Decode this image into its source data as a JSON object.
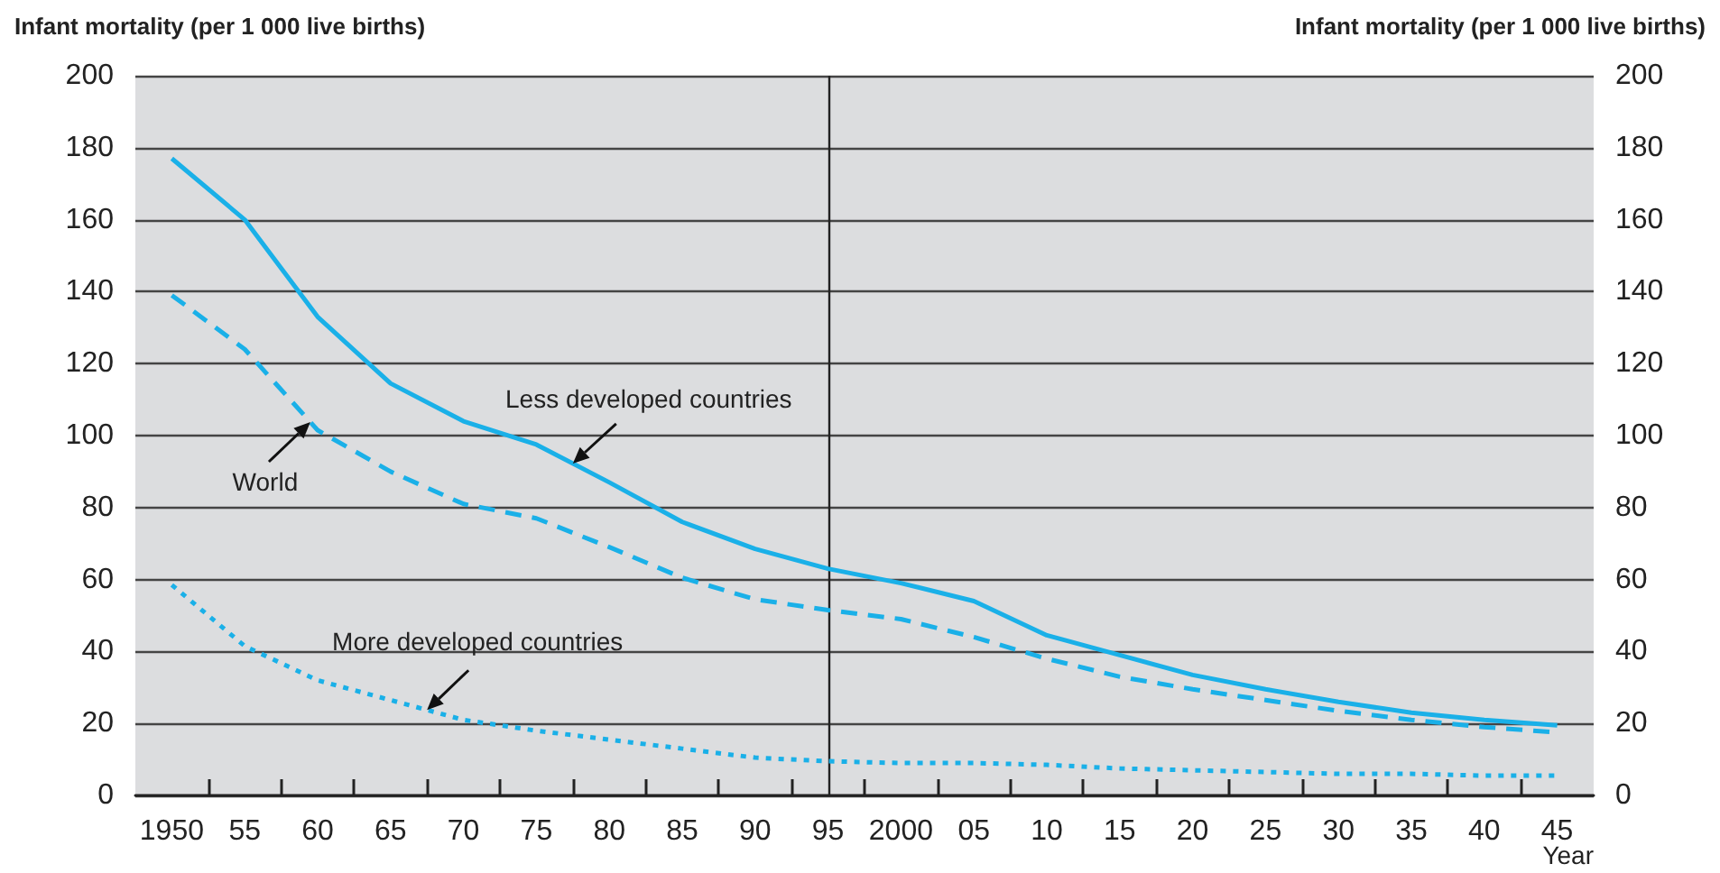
{
  "chart_data": {
    "type": "line",
    "ylabel": "Infant mortality (per 1 000 live births)",
    "y2label": "Infant mortality (per 1 000 live births)",
    "xlabel": "Year",
    "x": [
      1950,
      1955,
      1960,
      1965,
      1970,
      1975,
      1980,
      1985,
      1990,
      1995,
      2000,
      2005,
      2010,
      2015,
      2020,
      2025,
      2030,
      2035,
      2040,
      2045
    ],
    "series": [
      {
        "name": "Less developed countries",
        "color": "#1ab0e8",
        "line_style": "solid",
        "values": [
          177,
          160,
          133,
          114.5,
          104,
          97.5,
          87,
          76,
          68.5,
          63,
          59,
          54,
          44.5,
          39,
          33.5,
          29.5,
          26,
          23,
          21,
          19.5
        ]
      },
      {
        "name": "World",
        "color": "#1ab0e8",
        "line_style": "dashed",
        "values": [
          139,
          124,
          101.5,
          90,
          81,
          77,
          69,
          60.5,
          54.5,
          51.5,
          49,
          44,
          38,
          33,
          29.5,
          26.5,
          23.5,
          21,
          19,
          17.5
        ]
      },
      {
        "name": "More developed countries",
        "color": "#1ab0e8",
        "line_style": "dotted",
        "values": [
          58.5,
          41.5,
          32,
          26.5,
          21,
          18,
          15.5,
          13,
          10.5,
          9.5,
          9,
          9,
          8.5,
          7.5,
          7,
          6.5,
          6,
          6,
          5.5,
          5.5
        ]
      }
    ],
    "xlim": [
      1947.5,
      2047.5
    ],
    "xticks": [
      {
        "value": 1950,
        "label": "1950"
      },
      {
        "value": 1952.5,
        "label": null
      },
      {
        "value": 1955,
        "label": "55"
      },
      {
        "value": 1957.5,
        "label": null
      },
      {
        "value": 1960,
        "label": "60"
      },
      {
        "value": 1962.5,
        "label": null
      },
      {
        "value": 1965,
        "label": "65"
      },
      {
        "value": 1967.5,
        "label": null
      },
      {
        "value": 1970,
        "label": "70"
      },
      {
        "value": 1972.5,
        "label": null
      },
      {
        "value": 1975,
        "label": "75"
      },
      {
        "value": 1977.5,
        "label": null
      },
      {
        "value": 1980,
        "label": "80"
      },
      {
        "value": 1982.5,
        "label": null
      },
      {
        "value": 1985,
        "label": "85"
      },
      {
        "value": 1987.5,
        "label": null
      },
      {
        "value": 1990,
        "label": "90"
      },
      {
        "value": 1992.5,
        "label": null
      },
      {
        "value": 1995,
        "label": "95"
      },
      {
        "value": 1997.5,
        "label": null
      },
      {
        "value": 2000,
        "label": "2000"
      },
      {
        "value": 2002.5,
        "label": null
      },
      {
        "value": 2005,
        "label": "05"
      },
      {
        "value": 2007.5,
        "label": null
      },
      {
        "value": 2010,
        "label": "10"
      },
      {
        "value": 2012.5,
        "label": null
      },
      {
        "value": 2015,
        "label": "15"
      },
      {
        "value": 2017.5,
        "label": null
      },
      {
        "value": 2020,
        "label": "20"
      },
      {
        "value": 2022.5,
        "label": null
      },
      {
        "value": 2025,
        "label": "25"
      },
      {
        "value": 2027.5,
        "label": null
      },
      {
        "value": 2030,
        "label": "30"
      },
      {
        "value": 2032.5,
        "label": null
      },
      {
        "value": 2035,
        "label": "35"
      },
      {
        "value": 2037.5,
        "label": null
      },
      {
        "value": 2040,
        "label": "40"
      },
      {
        "value": 2042.5,
        "label": null
      },
      {
        "value": 2045,
        "label": "45"
      }
    ],
    "ylim": [
      0,
      200
    ],
    "yticks": [
      0,
      20,
      40,
      60,
      80,
      100,
      120,
      140,
      160,
      180,
      200
    ],
    "y2lim": [
      0,
      200
    ],
    "y2ticks": [
      0,
      20,
      40,
      60,
      80,
      100,
      120,
      140,
      160,
      180,
      200
    ],
    "ref_lines": [
      {
        "axis": "x",
        "value": 1995,
        "color": "#222222",
        "line_style": "solid"
      }
    ],
    "grid": "y",
    "marker": "none",
    "legend": false
  }
}
